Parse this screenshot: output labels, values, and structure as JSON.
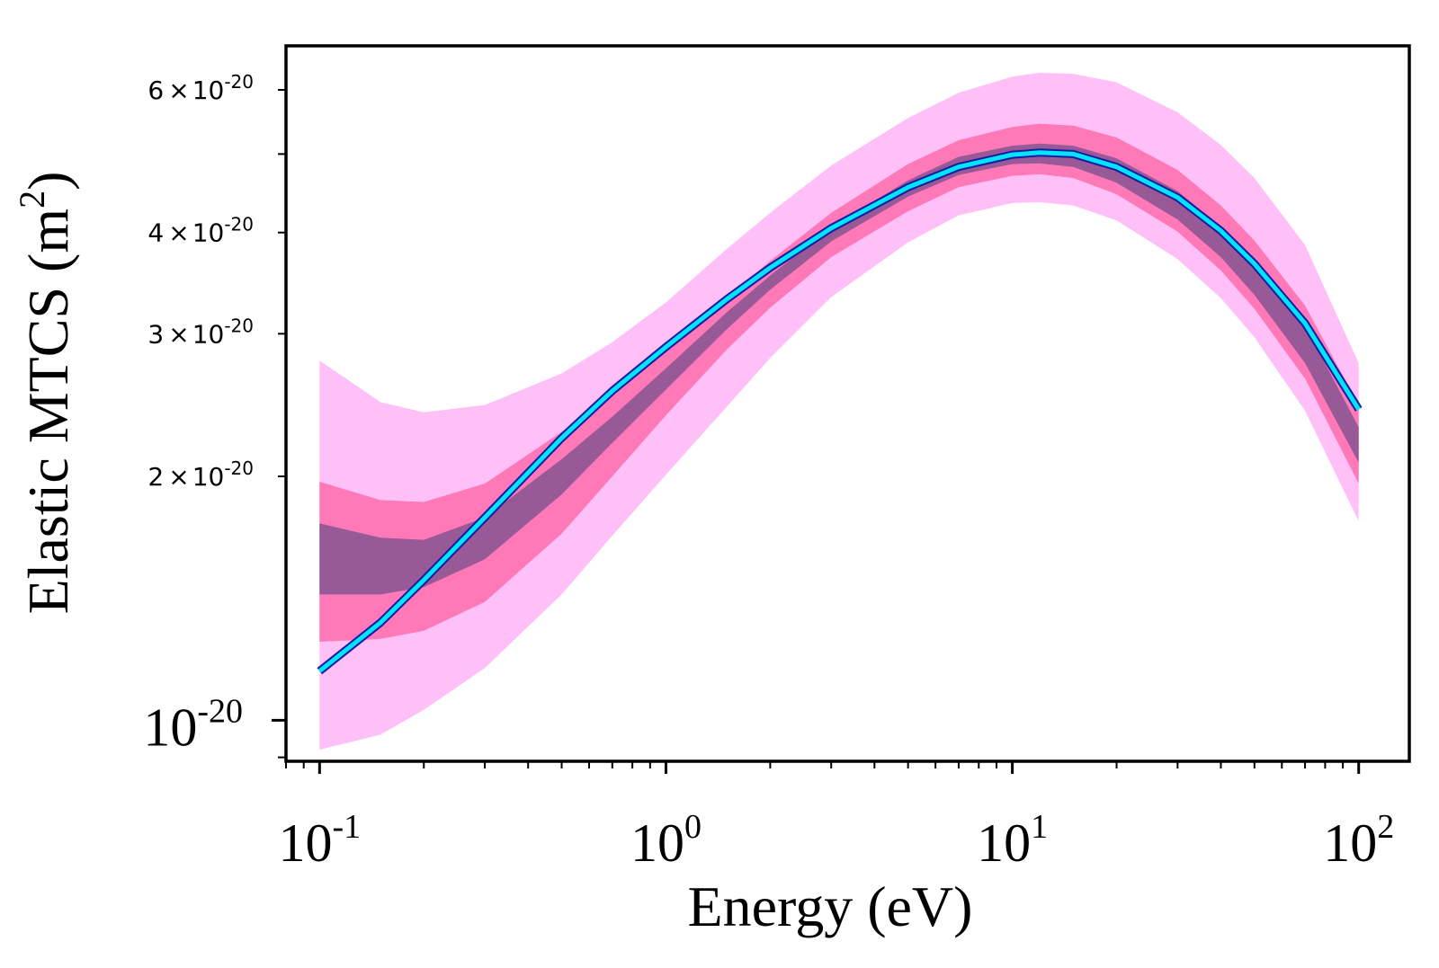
{
  "chart_data": {
    "type": "area",
    "xlabel": "Energy (eV)",
    "ylabel": {
      "text": "Elastic MTCS (m",
      "sup": "2",
      "close": ")"
    },
    "x_scale": "log",
    "y_scale": "log",
    "xlim": [
      0.08,
      140
    ],
    "ylim": [
      8.9e-21,
      6.8e-20
    ],
    "grid": false,
    "x_ticks": [
      {
        "value": 0.1,
        "base": "10",
        "exp": "-1"
      },
      {
        "value": 1,
        "base": "10",
        "exp": "0"
      },
      {
        "value": 10,
        "base": "10",
        "exp": "1"
      },
      {
        "value": 100,
        "base": "10",
        "exp": "2"
      }
    ],
    "y_ticks_major": [
      {
        "value": 1e-20,
        "base": "10",
        "exp": "-20"
      }
    ],
    "y_ticks_minor": [
      {
        "value": 2e-20,
        "mant": "2",
        "times": "×",
        "base": "10",
        "exp": "-20"
      },
      {
        "value": 3e-20,
        "mant": "3",
        "times": "×",
        "base": "10",
        "exp": "-20"
      },
      {
        "value": 4e-20,
        "mant": "4",
        "times": "×",
        "base": "10",
        "exp": "-20"
      },
      {
        "value": 6e-20,
        "mant": "6",
        "times": "×",
        "base": "10",
        "exp": "-20"
      }
    ],
    "x": [
      0.1,
      0.15,
      0.2,
      0.3,
      0.5,
      0.7,
      1,
      1.5,
      2,
      3,
      5,
      7,
      10,
      12,
      15,
      20,
      30,
      40,
      50,
      70,
      100
    ],
    "line": {
      "color": "#00e5ff",
      "edge_color": "#1a1aa0",
      "values": [
        1.15e-20,
        1.32e-20,
        1.49e-20,
        1.78e-20,
        2.23e-20,
        2.55e-20,
        2.89e-20,
        3.31e-20,
        3.62e-20,
        4.05e-20,
        4.55e-20,
        4.82e-20,
        4.99e-20,
        5.02e-20,
        5e-20,
        4.82e-20,
        4.42e-20,
        4.02e-20,
        3.66e-20,
        3.09e-20,
        2.42e-20
      ]
    },
    "bands": [
      {
        "color": "#ffc0f8",
        "lower": [
          9.2e-21,
          9.6e-21,
          1.03e-20,
          1.16e-20,
          1.43e-20,
          1.69e-20,
          2.01e-20,
          2.44e-20,
          2.8e-20,
          3.33e-20,
          3.89e-20,
          4.2e-20,
          4.35e-20,
          4.36e-20,
          4.32e-20,
          4.14e-20,
          3.71e-20,
          3.32e-20,
          2.97e-20,
          2.41e-20,
          1.76e-20
        ],
        "upper": [
          2.78e-20,
          2.47e-20,
          2.4e-20,
          2.45e-20,
          2.68e-20,
          2.93e-20,
          3.28e-20,
          3.82e-20,
          4.23e-20,
          4.84e-20,
          5.54e-20,
          5.95e-20,
          6.23e-20,
          6.3e-20,
          6.28e-20,
          6.13e-20,
          5.63e-20,
          5.13e-20,
          4.67e-20,
          3.86e-20,
          2.76e-20
        ]
      },
      {
        "color": "#ff78b8",
        "lower": [
          1.25e-20,
          1.26e-20,
          1.29e-20,
          1.4e-20,
          1.7e-20,
          2e-20,
          2.38e-20,
          2.87e-20,
          3.23e-20,
          3.73e-20,
          4.25e-20,
          4.55e-20,
          4.7e-20,
          4.72e-20,
          4.67e-20,
          4.46e-20,
          4.01e-20,
          3.59e-20,
          3.22e-20,
          2.64e-20,
          1.96e-20
        ],
        "upper": [
          1.97e-20,
          1.87e-20,
          1.86e-20,
          1.96e-20,
          2.27e-20,
          2.52e-20,
          2.87e-20,
          3.33e-20,
          3.69e-20,
          4.23e-20,
          4.86e-20,
          5.2e-20,
          5.4e-20,
          5.45e-20,
          5.42e-20,
          5.24e-20,
          4.78e-20,
          4.32e-20,
          3.91e-20,
          3.25e-20,
          2.45e-20
        ]
      },
      {
        "color": "#985a96",
        "lower": [
          1.43e-20,
          1.43e-20,
          1.46e-20,
          1.58e-20,
          1.9e-20,
          2.2e-20,
          2.56e-20,
          3.04e-20,
          3.4e-20,
          3.9e-20,
          4.43e-20,
          4.71e-20,
          4.86e-20,
          4.87e-20,
          4.82e-20,
          4.61e-20,
          4.15e-20,
          3.73e-20,
          3.35e-20,
          2.76e-20,
          2.08e-20
        ],
        "upper": [
          1.75e-20,
          1.68e-20,
          1.67e-20,
          1.78e-20,
          2.1e-20,
          2.37e-20,
          2.72e-20,
          3.19e-20,
          3.54e-20,
          4.06e-20,
          4.64e-20,
          4.96e-20,
          5.12e-20,
          5.15e-20,
          5.12e-20,
          4.94e-20,
          4.5e-20,
          4.07e-20,
          3.7e-20,
          3.07e-20,
          2.3e-20
        ]
      }
    ]
  }
}
